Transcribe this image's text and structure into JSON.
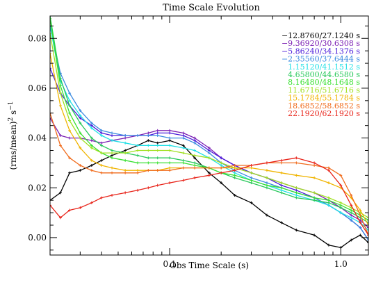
{
  "chart_data": {
    "type": "line",
    "title": "Time Scale Evolution",
    "xlabel": "Obs Time Scale (s)",
    "ylabel": "(rms/mean)",
    "ylabel_sup": "2",
    "ylabel_unit": " s",
    "ylabel_unit_sup": "−1",
    "x_scale": "log",
    "xlim": [
      0.02,
      1.45
    ],
    "ylim": [
      -0.007,
      0.089
    ],
    "x_ticks": [
      {
        "value": 0.1,
        "label": "0.1"
      },
      {
        "value": 1.0,
        "label": "1.0"
      }
    ],
    "y_ticks": [
      {
        "value": 0.0,
        "label": "0.00"
      },
      {
        "value": 0.02,
        "label": "0.02"
      },
      {
        "value": 0.04,
        "label": "0.04"
      },
      {
        "value": 0.06,
        "label": "0.06"
      },
      {
        "value": 0.08,
        "label": "0.08"
      }
    ],
    "grid": false,
    "legend_position": "top-right",
    "series": [
      {
        "name": "−12.8760/27.1240 s",
        "color": "#000000",
        "x": [
          0.02,
          0.023,
          0.026,
          0.03,
          0.035,
          0.04,
          0.046,
          0.055,
          0.065,
          0.075,
          0.085,
          0.1,
          0.12,
          0.14,
          0.17,
          0.2,
          0.24,
          0.3,
          0.37,
          0.45,
          0.55,
          0.7,
          0.85,
          1.0,
          1.15,
          1.3,
          1.45
        ],
        "y": [
          0.015,
          0.018,
          0.026,
          0.027,
          0.029,
          0.031,
          0.033,
          0.035,
          0.037,
          0.039,
          0.038,
          0.039,
          0.037,
          0.032,
          0.026,
          0.022,
          0.017,
          0.014,
          0.009,
          0.006,
          0.003,
          0.001,
          -0.003,
          -0.004,
          -0.001,
          0.001,
          -0.002
        ]
      },
      {
        "name": "−9.36920/30.6308 s",
        "color": "#7b1fb3",
        "x": [
          0.02,
          0.023,
          0.026,
          0.03,
          0.035,
          0.04,
          0.046,
          0.055,
          0.065,
          0.075,
          0.085,
          0.1,
          0.12,
          0.14,
          0.17,
          0.2,
          0.24,
          0.3,
          0.37,
          0.45,
          0.55,
          0.7,
          0.85,
          1.0,
          1.15,
          1.3,
          1.45
        ],
        "y": [
          0.048,
          0.041,
          0.04,
          0.04,
          0.039,
          0.038,
          0.039,
          0.04,
          0.041,
          0.042,
          0.043,
          0.043,
          0.042,
          0.04,
          0.036,
          0.032,
          0.029,
          0.026,
          0.024,
          0.022,
          0.02,
          0.018,
          0.015,
          0.012,
          0.009,
          0.007,
          0.004
        ]
      },
      {
        "name": "−5.86240/34.1376 s",
        "color": "#4a1ad9",
        "x": [
          0.02,
          0.023,
          0.026,
          0.03,
          0.035,
          0.04,
          0.046,
          0.055,
          0.065,
          0.075,
          0.085,
          0.1,
          0.12,
          0.14,
          0.17,
          0.2,
          0.24,
          0.3,
          0.37,
          0.45,
          0.55,
          0.7,
          0.85,
          1.0,
          1.15,
          1.3,
          1.45
        ],
        "y": [
          0.068,
          0.058,
          0.053,
          0.048,
          0.045,
          0.042,
          0.041,
          0.041,
          0.041,
          0.041,
          0.042,
          0.042,
          0.041,
          0.039,
          0.035,
          0.032,
          0.029,
          0.026,
          0.024,
          0.021,
          0.019,
          0.016,
          0.013,
          0.01,
          0.007,
          0.004,
          -0.001
        ]
      },
      {
        "name": "−2.35560/37.6444 s",
        "color": "#3a8ae0",
        "x": [
          0.02,
          0.023,
          0.026,
          0.03,
          0.035,
          0.04,
          0.046,
          0.055,
          0.065,
          0.075,
          0.085,
          0.1,
          0.12,
          0.14,
          0.17,
          0.2,
          0.24,
          0.3,
          0.37,
          0.45,
          0.55,
          0.7,
          0.85,
          1.0,
          1.15,
          1.3,
          1.45
        ],
        "y": [
          0.085,
          0.066,
          0.058,
          0.051,
          0.046,
          0.043,
          0.042,
          0.041,
          0.041,
          0.041,
          0.041,
          0.04,
          0.04,
          0.038,
          0.034,
          0.03,
          0.027,
          0.024,
          0.022,
          0.02,
          0.018,
          0.016,
          0.013,
          0.01,
          0.007,
          0.004,
          -0.001
        ]
      },
      {
        "name": "1.15120/41.1512 s",
        "color": "#1fe0e6",
        "x": [
          0.02,
          0.023,
          0.026,
          0.03,
          0.035,
          0.04,
          0.046,
          0.055,
          0.065,
          0.075,
          0.085,
          0.1,
          0.12,
          0.14,
          0.17,
          0.2,
          0.24,
          0.3,
          0.37,
          0.45,
          0.55,
          0.7,
          0.85,
          1.0,
          1.15,
          1.3,
          1.45
        ],
        "y": [
          0.085,
          0.063,
          0.055,
          0.049,
          0.044,
          0.041,
          0.039,
          0.038,
          0.037,
          0.037,
          0.037,
          0.037,
          0.036,
          0.035,
          0.032,
          0.029,
          0.026,
          0.023,
          0.021,
          0.019,
          0.017,
          0.015,
          0.013,
          0.01,
          0.008,
          0.006,
          0.003
        ]
      },
      {
        "name": "4.65800/44.6580 s",
        "color": "#28c85a",
        "x": [
          0.02,
          0.023,
          0.026,
          0.03,
          0.035,
          0.04,
          0.046,
          0.055,
          0.065,
          0.075,
          0.085,
          0.1,
          0.12,
          0.14,
          0.17,
          0.2,
          0.24,
          0.3,
          0.37,
          0.45,
          0.55,
          0.7,
          0.85,
          1.0,
          1.15,
          1.3,
          1.45
        ],
        "y": [
          0.089,
          0.064,
          0.053,
          0.046,
          0.04,
          0.037,
          0.035,
          0.034,
          0.033,
          0.032,
          0.032,
          0.032,
          0.031,
          0.03,
          0.028,
          0.026,
          0.024,
          0.022,
          0.02,
          0.018,
          0.016,
          0.015,
          0.014,
          0.012,
          0.01,
          0.008,
          0.006
        ]
      },
      {
        "name": "8.16480/48.1648 s",
        "color": "#38e030",
        "x": [
          0.02,
          0.023,
          0.026,
          0.03,
          0.035,
          0.04,
          0.046,
          0.055,
          0.065,
          0.075,
          0.085,
          0.1,
          0.12,
          0.14,
          0.17,
          0.2,
          0.24,
          0.3,
          0.37,
          0.45,
          0.55,
          0.7,
          0.85,
          1.0,
          1.15,
          1.3,
          1.45
        ],
        "y": [
          0.088,
          0.061,
          0.05,
          0.042,
          0.037,
          0.034,
          0.032,
          0.031,
          0.03,
          0.03,
          0.03,
          0.03,
          0.03,
          0.029,
          0.028,
          0.026,
          0.025,
          0.023,
          0.021,
          0.02,
          0.018,
          0.016,
          0.015,
          0.013,
          0.011,
          0.009,
          0.007
        ]
      },
      {
        "name": "11.6716/51.6716 s",
        "color": "#a0e020",
        "x": [
          0.02,
          0.023,
          0.026,
          0.03,
          0.035,
          0.04,
          0.046,
          0.055,
          0.065,
          0.075,
          0.085,
          0.1,
          0.12,
          0.14,
          0.17,
          0.2,
          0.24,
          0.3,
          0.37,
          0.45,
          0.55,
          0.7,
          0.85,
          1.0,
          1.15,
          1.3,
          1.45
        ],
        "y": [
          0.082,
          0.058,
          0.047,
          0.04,
          0.036,
          0.034,
          0.034,
          0.034,
          0.035,
          0.035,
          0.035,
          0.035,
          0.034,
          0.033,
          0.032,
          0.03,
          0.028,
          0.026,
          0.024,
          0.022,
          0.02,
          0.018,
          0.016,
          0.014,
          0.012,
          0.01,
          0.008
        ]
      },
      {
        "name": "15.1784/55.1784 s",
        "color": "#f0b400",
        "x": [
          0.02,
          0.023,
          0.026,
          0.03,
          0.035,
          0.04,
          0.046,
          0.055,
          0.065,
          0.075,
          0.085,
          0.1,
          0.12,
          0.14,
          0.17,
          0.2,
          0.24,
          0.3,
          0.37,
          0.45,
          0.55,
          0.7,
          0.85,
          1.0,
          1.15,
          1.3,
          1.45
        ],
        "y": [
          0.074,
          0.053,
          0.043,
          0.036,
          0.031,
          0.029,
          0.028,
          0.027,
          0.027,
          0.027,
          0.027,
          0.028,
          0.028,
          0.028,
          0.028,
          0.028,
          0.028,
          0.028,
          0.027,
          0.026,
          0.025,
          0.024,
          0.022,
          0.02,
          0.016,
          0.011,
          0.005
        ]
      },
      {
        "name": "18.6852/58.6852 s",
        "color": "#f06a1a",
        "x": [
          0.02,
          0.023,
          0.026,
          0.03,
          0.035,
          0.04,
          0.046,
          0.055,
          0.065,
          0.075,
          0.085,
          0.1,
          0.12,
          0.14,
          0.17,
          0.2,
          0.24,
          0.3,
          0.37,
          0.45,
          0.55,
          0.7,
          0.85,
          1.0,
          1.15,
          1.3,
          1.45
        ],
        "y": [
          0.05,
          0.037,
          0.032,
          0.029,
          0.027,
          0.026,
          0.026,
          0.026,
          0.026,
          0.027,
          0.027,
          0.027,
          0.028,
          0.028,
          0.028,
          0.028,
          0.029,
          0.029,
          0.03,
          0.03,
          0.03,
          0.029,
          0.028,
          0.025,
          0.017,
          0.009,
          0.001
        ]
      },
      {
        "name": "22.1920/62.1920 s",
        "color": "#e8241a",
        "x": [
          0.02,
          0.023,
          0.026,
          0.03,
          0.035,
          0.04,
          0.046,
          0.055,
          0.065,
          0.075,
          0.085,
          0.1,
          0.12,
          0.14,
          0.17,
          0.2,
          0.24,
          0.3,
          0.37,
          0.45,
          0.55,
          0.7,
          0.85,
          1.0,
          1.15,
          1.3,
          1.45
        ],
        "y": [
          0.013,
          0.008,
          0.011,
          0.012,
          0.014,
          0.016,
          0.017,
          0.018,
          0.019,
          0.02,
          0.021,
          0.022,
          0.023,
          0.024,
          0.025,
          0.026,
          0.027,
          0.029,
          0.03,
          0.031,
          0.032,
          0.03,
          0.027,
          0.021,
          0.013,
          0.006,
          0.001
        ]
      }
    ]
  }
}
